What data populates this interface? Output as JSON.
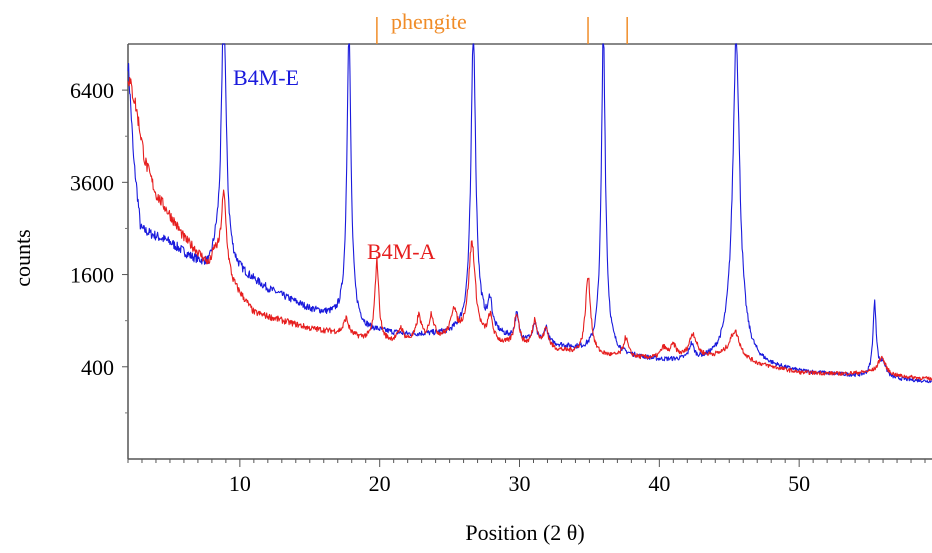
{
  "chart_data": {
    "type": "line",
    "xlabel": "Position (2 θ)",
    "ylabel": "counts",
    "xlim": [
      2,
      59.5
    ],
    "ylim": [
      0,
      8100
    ],
    "y_scale": "sqrt",
    "x_ticks": [
      10,
      20,
      30,
      40,
      50
    ],
    "x_tick_labels": [
      "10",
      "20",
      "30",
      "40",
      "50"
    ],
    "y_ticks": [
      400,
      1600,
      3600,
      6400
    ],
    "y_tick_labels": [
      "400",
      "1600",
      "3600",
      "6400"
    ],
    "grid": false,
    "reference": {
      "name": "phengite",
      "color": "#f08c28",
      "positions": [
        19.8,
        34.9,
        37.7
      ]
    },
    "series": [
      {
        "name": "B4M-E",
        "color": "#1a1adc",
        "baseline": [
          [
            2,
            7400
          ],
          [
            2.4,
            4200
          ],
          [
            2.9,
            2500
          ],
          [
            3.5,
            2400
          ],
          [
            5,
            2200
          ],
          [
            6.5,
            1900
          ],
          [
            7.8,
            1700
          ],
          [
            8.3,
            2000
          ],
          [
            9.5,
            1700
          ],
          [
            12,
            1350
          ],
          [
            15,
            1050
          ],
          [
            17.5,
            900
          ],
          [
            19,
            780
          ],
          [
            22,
            720
          ],
          [
            25,
            730
          ],
          [
            27.3,
            790
          ],
          [
            29,
            690
          ],
          [
            32,
            620
          ],
          [
            35,
            530
          ],
          [
            38,
            480
          ],
          [
            40,
            450
          ],
          [
            45,
            430
          ],
          [
            50,
            350
          ],
          [
            53,
            330
          ],
          [
            56,
            300
          ],
          [
            59.5,
            280
          ]
        ],
        "peaks": [
          [
            8.85,
            8100,
            0.16
          ],
          [
            17.8,
            8100,
            0.13
          ],
          [
            26.7,
            8100,
            0.15
          ],
          [
            27.9,
            400,
            0.15
          ],
          [
            29.8,
            300,
            0.15
          ],
          [
            31.1,
            200,
            0.15
          ],
          [
            31.9,
            180,
            0.15
          ],
          [
            36.0,
            8100,
            0.13
          ],
          [
            42.3,
            150,
            0.2
          ],
          [
            45.5,
            8100,
            0.22
          ],
          [
            55.4,
            820,
            0.13
          ],
          [
            56.0,
            120,
            0.25
          ]
        ]
      },
      {
        "name": "B4M-A",
        "color": "#e61e1e",
        "baseline": [
          [
            2,
            6900
          ],
          [
            2.5,
            6000
          ],
          [
            3.2,
            4200
          ],
          [
            4,
            3300
          ],
          [
            5,
            2800
          ],
          [
            6,
            2300
          ],
          [
            7,
            2000
          ],
          [
            7.8,
            1750
          ],
          [
            8.2,
            2000
          ],
          [
            9.5,
            1400
          ],
          [
            11,
            1000
          ],
          [
            13,
            900
          ],
          [
            15,
            800
          ],
          [
            17,
            750
          ],
          [
            18.5,
            690
          ],
          [
            20,
            640
          ],
          [
            23,
            650
          ],
          [
            26,
            720
          ],
          [
            27.5,
            650
          ],
          [
            29,
            600
          ],
          [
            32,
            560
          ],
          [
            35,
            500
          ],
          [
            38,
            480
          ],
          [
            40,
            470
          ],
          [
            42,
            480
          ],
          [
            45,
            500
          ],
          [
            47,
            420
          ],
          [
            50,
            350
          ],
          [
            53,
            340
          ],
          [
            55,
            350
          ],
          [
            57,
            320
          ],
          [
            59.5,
            300
          ]
        ],
        "peaks": [
          [
            8.85,
            1600,
            0.2
          ],
          [
            17.6,
            200,
            0.2
          ],
          [
            19.8,
            1200,
            0.15
          ],
          [
            21.5,
            150,
            0.2
          ],
          [
            22.8,
            300,
            0.2
          ],
          [
            23.7,
            300,
            0.2
          ],
          [
            25.3,
            350,
            0.2
          ],
          [
            26.6,
            1500,
            0.25
          ],
          [
            27.9,
            300,
            0.2
          ],
          [
            29.8,
            400,
            0.2
          ],
          [
            31.1,
            320,
            0.2
          ],
          [
            31.9,
            220,
            0.2
          ],
          [
            34.9,
            1050,
            0.2
          ],
          [
            37.6,
            200,
            0.2
          ],
          [
            40.3,
            100,
            0.25
          ],
          [
            41.0,
            120,
            0.25
          ],
          [
            42.4,
            250,
            0.3
          ],
          [
            45.4,
            280,
            0.4
          ],
          [
            55.9,
            150,
            0.3
          ]
        ]
      }
    ]
  }
}
